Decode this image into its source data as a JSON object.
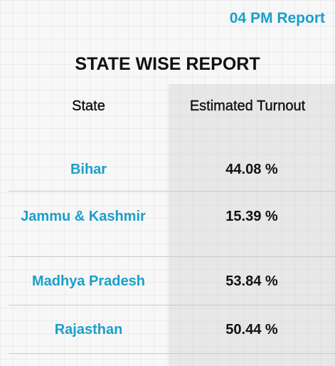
{
  "report_time": "04 PM Report",
  "title": "STATE WISE REPORT",
  "table": {
    "headers": {
      "state": "State",
      "turnout": "Estimated Turnout"
    },
    "rows": [
      {
        "state": "Bihar",
        "turnout": "44.08 %"
      },
      {
        "state": "Jammu & Kashmir",
        "turnout": "15.39 %"
      },
      {
        "state": "Madhya Pradesh",
        "turnout": "53.84 %"
      },
      {
        "state": "Rajasthan",
        "turnout": "50.44 %"
      }
    ]
  },
  "colors": {
    "accent": "#1a9fca",
    "text": "#111111",
    "background": "#f7f7f7"
  }
}
